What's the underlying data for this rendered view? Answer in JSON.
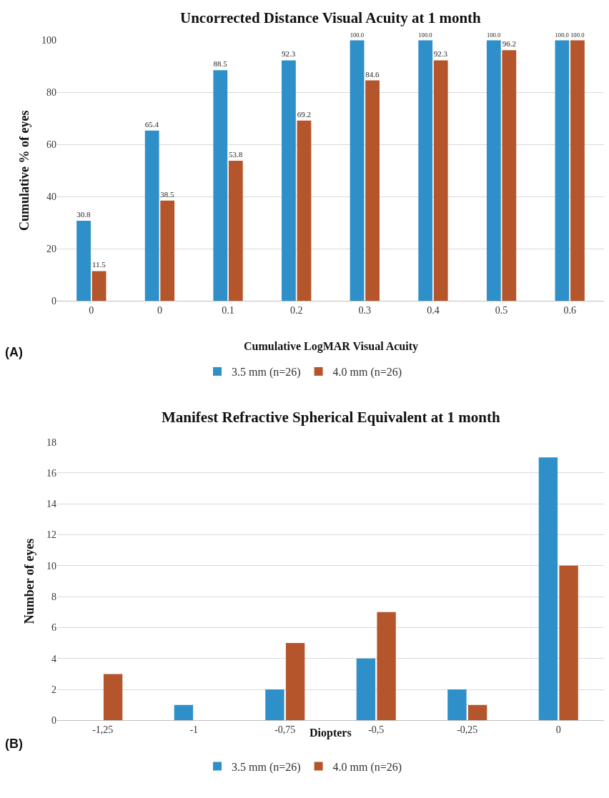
{
  "chart_data": [
    {
      "type": "bar",
      "title": "Uncorrected Distance Visual Acuity at 1 month",
      "xlabel": "Cumulative LogMAR Visual Acuity",
      "ylabel": "Cumulative % of eyes",
      "annotations": [
        "(A)"
      ],
      "categories": [
        "0",
        "0",
        "0.1",
        "0.2",
        "0.3",
        "0.4",
        "0.5",
        "0.6"
      ],
      "series": [
        {
          "name": "3.5 mm (n=26)",
          "color": "#2e8fc9",
          "values": [
            30.8,
            65.4,
            88.5,
            92.3,
            100.0,
            100.0,
            100.0,
            100.0
          ],
          "value_labels": [
            "30.8",
            "65.4",
            "88.5",
            "92.3",
            "100.0",
            "100.0",
            "100.0",
            "100.0"
          ]
        },
        {
          "name": "4.0 mm (n=26)",
          "color": "#b5552b",
          "values": [
            11.5,
            38.5,
            53.8,
            69.2,
            84.6,
            92.3,
            96.2,
            100.0
          ],
          "value_labels": [
            "11.5",
            "38.5",
            "53.8",
            "69.2",
            "84.6",
            "92.3",
            "96.2",
            "100.0"
          ]
        }
      ],
      "ylim": [
        0,
        100
      ],
      "yticks": [
        0,
        20,
        40,
        60,
        80,
        100
      ],
      "grid": "y",
      "legend": "bottom"
    },
    {
      "type": "bar",
      "title": "Manifest Refractive Spherical Equivalent at 1 month",
      "xlabel": "Diopters",
      "ylabel": "Number of eyes",
      "annotations": [
        "(B)"
      ],
      "categories": [
        "-1,25",
        "-1",
        "-0,75",
        "-0,5",
        "-0,25",
        "0"
      ],
      "series": [
        {
          "name": "3.5 mm (n=26)",
          "color": "#2e8fc9",
          "values": [
            0,
            1,
            2,
            4,
            2,
            17
          ]
        },
        {
          "name": "4.0 mm (n=26)",
          "color": "#b5552b",
          "values": [
            3,
            0,
            5,
            7,
            1,
            10
          ]
        }
      ],
      "ylim": [
        0,
        18
      ],
      "yticks": [
        0,
        2,
        4,
        6,
        8,
        10,
        12,
        14,
        16,
        18
      ],
      "grid": "y",
      "legend": "bottom"
    }
  ]
}
